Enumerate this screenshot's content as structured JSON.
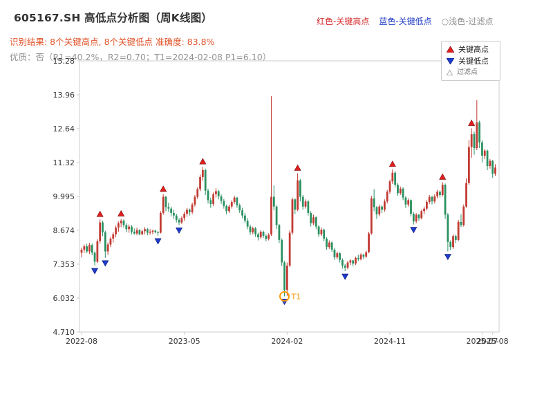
{
  "header": {
    "title": "605167.SH 高低点分析图（周K线图）",
    "legend_high": "红色-关键高点",
    "legend_low": "蓝色-关键低点",
    "legend_filter": "○浅色-过滤点",
    "result_line": "识别结果: 8个关键高点, 8个关键低点  准确度: 83.8%",
    "quality_line": "优质：否（R1=40.2%，R2=0.70；T1=2024-02-08 P1=6.10）"
  },
  "chart_legend": {
    "high": "关键高点",
    "low": "关键低点",
    "filter": "过滤点"
  },
  "colors": {
    "candle_up": "#c23b33",
    "candle_down": "#2a9161",
    "key_high": "#e02020",
    "key_high_edge": "#7a0000",
    "key_low": "#1f3ccc",
    "key_low_edge": "#001070",
    "filter_edge": "#999999",
    "t1_orange": "#ff9800",
    "frame": "#cccccc",
    "tick_text": "#333333"
  },
  "chart_data": {
    "type": "candlestick",
    "symbol": "605167.SH",
    "period": "weekly",
    "title": "605167.SH 高低点分析图（周K线图）",
    "ylim": [
      4.71,
      15.28
    ],
    "y_ticks": [
      "15.28",
      "13.96",
      "12.64",
      "11.32",
      "9.995",
      "8.674",
      "7.353",
      "6.032",
      "4.710"
    ],
    "x_ticks": [
      {
        "label": "2022-08",
        "i": 0
      },
      {
        "label": "2023-05",
        "i": 39
      },
      {
        "label": "2024-02",
        "i": 78
      },
      {
        "label": "2024-11",
        "i": 117
      },
      {
        "label": "2025-07",
        "i": 152
      },
      {
        "label": "2025-08",
        "i": 156
      }
    ],
    "candles": [
      [
        7.8,
        8.0,
        7.62,
        7.92
      ],
      [
        7.92,
        8.12,
        7.8,
        8.05
      ],
      [
        8.05,
        8.15,
        7.78,
        7.85
      ],
      [
        7.85,
        8.18,
        7.75,
        8.1
      ],
      [
        8.1,
        8.16,
        7.7,
        7.8
      ],
      [
        7.8,
        7.85,
        7.3,
        7.45
      ],
      [
        7.45,
        8.32,
        7.4,
        8.25
      ],
      [
        8.25,
        9.1,
        8.15,
        8.98
      ],
      [
        8.98,
        9.05,
        8.45,
        8.6
      ],
      [
        8.6,
        8.66,
        7.6,
        7.85
      ],
      [
        7.85,
        8.2,
        7.72,
        8.12
      ],
      [
        8.12,
        8.42,
        8.02,
        8.35
      ],
      [
        8.35,
        8.6,
        8.2,
        8.52
      ],
      [
        8.52,
        8.85,
        8.4,
        8.78
      ],
      [
        8.78,
        9.02,
        8.62,
        8.95
      ],
      [
        8.95,
        9.12,
        8.8,
        9.05
      ],
      [
        9.05,
        9.1,
        8.78,
        8.88
      ],
      [
        8.88,
        8.95,
        8.6,
        8.72
      ],
      [
        8.72,
        8.9,
        8.58,
        8.82
      ],
      [
        8.82,
        8.88,
        8.52,
        8.62
      ],
      [
        8.62,
        8.75,
        8.5,
        8.55
      ],
      [
        8.55,
        8.78,
        8.48,
        8.68
      ],
      [
        8.68,
        8.72,
        8.48,
        8.52
      ],
      [
        8.52,
        8.7,
        8.48,
        8.64
      ],
      [
        8.64,
        8.8,
        8.52,
        8.72
      ],
      [
        8.72,
        8.76,
        8.48,
        8.58
      ],
      [
        8.58,
        8.72,
        8.5,
        8.62
      ],
      [
        8.62,
        8.7,
        8.52,
        8.66
      ],
      [
        8.66,
        8.7,
        8.56,
        8.6
      ],
      [
        8.6,
        8.64,
        8.46,
        8.58
      ],
      [
        8.58,
        9.42,
        8.55,
        9.35
      ],
      [
        9.35,
        10.08,
        9.28,
        9.98
      ],
      [
        9.98,
        10.02,
        9.42,
        9.58
      ],
      [
        9.58,
        9.75,
        9.4,
        9.52
      ],
      [
        9.52,
        9.6,
        9.22,
        9.35
      ],
      [
        9.35,
        9.48,
        9.12,
        9.25
      ],
      [
        9.25,
        9.32,
        8.98,
        9.08
      ],
      [
        9.08,
        9.15,
        8.88,
        8.98
      ],
      [
        8.98,
        9.22,
        8.92,
        9.15
      ],
      [
        9.15,
        9.4,
        9.05,
        9.32
      ],
      [
        9.32,
        9.55,
        9.2,
        9.48
      ],
      [
        9.48,
        9.52,
        9.25,
        9.38
      ],
      [
        9.38,
        9.75,
        9.3,
        9.68
      ],
      [
        9.68,
        10.05,
        9.6,
        9.98
      ],
      [
        9.98,
        10.35,
        9.9,
        10.28
      ],
      [
        10.28,
        10.85,
        10.2,
        10.75
      ],
      [
        10.75,
        11.15,
        10.6,
        11.02
      ],
      [
        11.02,
        11.08,
        10.05,
        10.22
      ],
      [
        10.22,
        10.3,
        9.72,
        9.85
      ],
      [
        9.85,
        9.95,
        9.55,
        9.7
      ],
      [
        9.7,
        10.15,
        9.62,
        10.08
      ],
      [
        10.08,
        10.32,
        9.95,
        10.2
      ],
      [
        10.2,
        10.25,
        9.88,
        10.0
      ],
      [
        10.0,
        10.08,
        9.7,
        9.82
      ],
      [
        9.82,
        9.9,
        9.52,
        9.62
      ],
      [
        9.62,
        9.68,
        9.3,
        9.42
      ],
      [
        9.42,
        9.68,
        9.35,
        9.6
      ],
      [
        9.6,
        9.85,
        9.52,
        9.78
      ],
      [
        9.78,
        10.02,
        9.7,
        9.95
      ],
      [
        9.95,
        9.98,
        9.55,
        9.65
      ],
      [
        9.65,
        9.72,
        9.35,
        9.45
      ],
      [
        9.45,
        9.55,
        9.15,
        9.25
      ],
      [
        9.25,
        9.35,
        8.95,
        9.05
      ],
      [
        9.05,
        9.15,
        8.72,
        8.82
      ],
      [
        8.82,
        8.9,
        8.5,
        8.6
      ],
      [
        8.6,
        8.82,
        8.52,
        8.75
      ],
      [
        8.75,
        8.8,
        8.42,
        8.52
      ],
      [
        8.52,
        8.58,
        8.28,
        8.4
      ],
      [
        8.4,
        8.68,
        8.35,
        8.62
      ],
      [
        8.62,
        8.66,
        8.38,
        8.46
      ],
      [
        8.46,
        8.52,
        8.24,
        8.34
      ],
      [
        8.34,
        8.56,
        8.28,
        8.5
      ],
      [
        8.52,
        13.9,
        8.45,
        9.98
      ],
      [
        9.98,
        10.42,
        9.45,
        9.6
      ],
      [
        9.6,
        9.66,
        8.72,
        8.88
      ],
      [
        8.88,
        8.92,
        8.18,
        8.3
      ],
      [
        8.3,
        8.36,
        7.28,
        7.42
      ],
      [
        7.42,
        7.48,
        6.1,
        6.35
      ],
      [
        6.35,
        7.42,
        6.12,
        7.3
      ],
      [
        7.3,
        8.68,
        7.25,
        8.58
      ],
      [
        8.58,
        9.95,
        8.5,
        9.88
      ],
      [
        9.88,
        9.92,
        9.3,
        9.48
      ],
      [
        9.48,
        10.9,
        9.42,
        10.62
      ],
      [
        10.62,
        10.68,
        9.8,
        9.98
      ],
      [
        9.98,
        10.05,
        9.48,
        9.6
      ],
      [
        9.6,
        9.88,
        9.52,
        9.8
      ],
      [
        9.8,
        9.85,
        9.25,
        9.35
      ],
      [
        9.35,
        9.42,
        8.82,
        8.95
      ],
      [
        8.95,
        9.28,
        8.88,
        9.18
      ],
      [
        9.18,
        9.22,
        8.72,
        8.82
      ],
      [
        8.82,
        8.88,
        8.42,
        8.52
      ],
      [
        8.52,
        8.78,
        8.45,
        8.7
      ],
      [
        8.7,
        8.74,
        8.25,
        8.35
      ],
      [
        8.35,
        8.4,
        7.92,
        8.02
      ],
      [
        8.02,
        8.28,
        7.95,
        8.2
      ],
      [
        8.2,
        8.24,
        7.82,
        7.92
      ],
      [
        7.92,
        7.98,
        7.52,
        7.62
      ],
      [
        7.62,
        7.85,
        7.55,
        7.78
      ],
      [
        7.78,
        7.82,
        7.42,
        7.52
      ],
      [
        7.52,
        7.58,
        7.18,
        7.3
      ],
      [
        7.3,
        7.36,
        7.08,
        7.22
      ],
      [
        7.22,
        7.48,
        7.15,
        7.42
      ],
      [
        7.42,
        7.55,
        7.32,
        7.5
      ],
      [
        7.5,
        7.52,
        7.28,
        7.38
      ],
      [
        7.38,
        7.65,
        7.32,
        7.6
      ],
      [
        7.6,
        7.72,
        7.48,
        7.55
      ],
      [
        7.55,
        7.78,
        7.5,
        7.72
      ],
      [
        7.72,
        7.76,
        7.55,
        7.65
      ],
      [
        7.65,
        7.88,
        7.6,
        7.82
      ],
      [
        7.82,
        8.62,
        7.78,
        8.55
      ],
      [
        8.55,
        10.02,
        8.5,
        9.92
      ],
      [
        9.92,
        10.28,
        9.42,
        9.58
      ],
      [
        9.58,
        9.62,
        9.12,
        9.3
      ],
      [
        9.3,
        9.68,
        9.22,
        9.6
      ],
      [
        9.6,
        9.65,
        9.35,
        9.48
      ],
      [
        9.48,
        9.88,
        9.4,
        9.8
      ],
      [
        9.8,
        10.25,
        9.72,
        10.18
      ],
      [
        10.18,
        10.65,
        10.1,
        10.58
      ],
      [
        10.58,
        11.05,
        10.48,
        10.92
      ],
      [
        10.92,
        10.98,
        10.35,
        10.45
      ],
      [
        10.45,
        10.52,
        10.02,
        10.12
      ],
      [
        10.12,
        10.38,
        10.05,
        10.3
      ],
      [
        10.3,
        10.35,
        9.85,
        9.95
      ],
      [
        9.95,
        10.0,
        9.55,
        9.68
      ],
      [
        9.68,
        9.92,
        9.6,
        9.85
      ],
      [
        9.85,
        9.88,
        9.22,
        9.32
      ],
      [
        9.32,
        9.38,
        8.9,
        9.02
      ],
      [
        9.02,
        9.35,
        8.95,
        9.28
      ],
      [
        9.28,
        9.32,
        9.05,
        9.15
      ],
      [
        9.15,
        9.48,
        9.1,
        9.42
      ],
      [
        9.42,
        9.6,
        9.3,
        9.52
      ],
      [
        9.52,
        9.85,
        9.45,
        9.78
      ],
      [
        9.78,
        10.05,
        9.7,
        9.98
      ],
      [
        9.98,
        10.02,
        9.68,
        9.8
      ],
      [
        9.8,
        10.08,
        9.72,
        10.0
      ],
      [
        10.0,
        10.25,
        9.92,
        10.18
      ],
      [
        10.18,
        10.22,
        9.95,
        10.05
      ],
      [
        10.05,
        10.55,
        10.0,
        10.45
      ],
      [
        10.45,
        10.5,
        9.12,
        9.28
      ],
      [
        9.28,
        9.35,
        7.85,
        8.22
      ],
      [
        8.22,
        8.28,
        7.9,
        8.02
      ],
      [
        8.02,
        8.52,
        7.95,
        8.45
      ],
      [
        8.45,
        8.5,
        8.18,
        8.3
      ],
      [
        8.3,
        9.08,
        8.25,
        9.0
      ],
      [
        9.0,
        9.3,
        8.8,
        8.88
      ],
      [
        8.88,
        9.68,
        8.82,
        9.6
      ],
      [
        9.6,
        10.7,
        9.55,
        10.52
      ],
      [
        10.52,
        12.2,
        10.45,
        11.92
      ],
      [
        11.92,
        12.65,
        11.5,
        12.42
      ],
      [
        12.42,
        12.52,
        11.62,
        11.88
      ],
      [
        11.88,
        13.75,
        11.8,
        12.88
      ],
      [
        12.88,
        12.95,
        11.88,
        12.1
      ],
      [
        12.1,
        12.18,
        11.32,
        11.58
      ],
      [
        11.58,
        11.85,
        11.45,
        11.78
      ],
      [
        11.78,
        11.82,
        11.02,
        11.18
      ],
      [
        11.18,
        11.45,
        11.08,
        11.38
      ],
      [
        11.38,
        11.42,
        10.72,
        10.88
      ],
      [
        10.88,
        11.25,
        10.8,
        11.12
      ]
    ],
    "key_highs": [
      {
        "i": 7,
        "price": 9.1
      },
      {
        "i": 15,
        "price": 9.12
      },
      {
        "i": 31,
        "price": 10.08
      },
      {
        "i": 46,
        "price": 11.15
      },
      {
        "i": 82,
        "price": 10.9
      },
      {
        "i": 118,
        "price": 11.05
      },
      {
        "i": 137,
        "price": 10.55
      },
      {
        "i": 148,
        "price": 12.65
      }
    ],
    "key_lows": [
      {
        "i": 5,
        "price": 7.3
      },
      {
        "i": 9,
        "price": 7.6
      },
      {
        "i": 29,
        "price": 8.46
      },
      {
        "i": 37,
        "price": 8.88
      },
      {
        "i": 77,
        "price": 6.1
      },
      {
        "i": 100,
        "price": 7.08
      },
      {
        "i": 126,
        "price": 8.9
      },
      {
        "i": 139,
        "price": 7.85
      }
    ],
    "t1": {
      "i": 77,
      "price": 6.1,
      "label": "T1"
    }
  }
}
